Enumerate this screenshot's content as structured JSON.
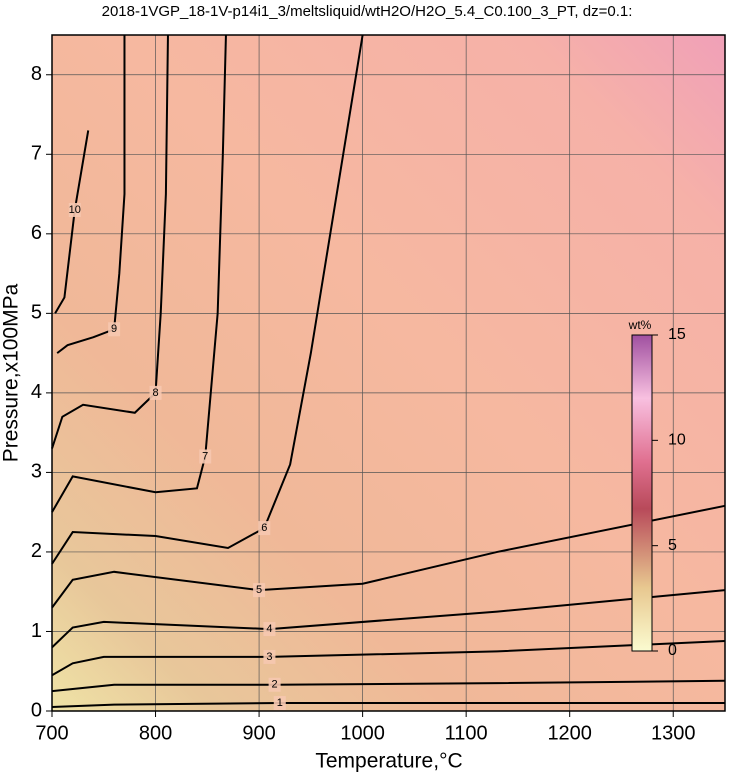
{
  "chart_data": {
    "type": "contour",
    "title": "2018-1VGP_18-1V-p14i1_3/meltsliquid/wtH2O/H2O_5.4_C0.100_3_PT, dz=0.1:",
    "x_label": "Temperature,°C",
    "y_label": "Pressure,x100MPa",
    "xlim": [
      700,
      1350
    ],
    "ylim": [
      0,
      8.5
    ],
    "xticks": [
      700,
      800,
      900,
      1000,
      1100,
      1200,
      1300
    ],
    "yticks": [
      0,
      1,
      2,
      3,
      4,
      5,
      6,
      7,
      8
    ],
    "grid": true,
    "color": "#000000",
    "colorbar": {
      "label": "wt%",
      "lim": [
        0,
        15
      ],
      "ticks": [
        0,
        5,
        10,
        15
      ]
    },
    "series": [
      {
        "level": 1,
        "x": [
          700,
          760,
          920,
          1130,
          1350
        ],
        "y": [
          0.05,
          0.08,
          0.1,
          0.1,
          0.1
        ]
      },
      {
        "level": 2,
        "x": [
          700,
          760,
          915,
          1130,
          1350
        ],
        "y": [
          0.25,
          0.33,
          0.33,
          0.35,
          0.38
        ]
      },
      {
        "level": 3,
        "x": [
          700,
          720,
          750,
          910,
          1130,
          1350
        ],
        "y": [
          0.45,
          0.6,
          0.68,
          0.68,
          0.75,
          0.88
        ]
      },
      {
        "level": 4,
        "x": [
          700,
          720,
          750,
          910,
          1130,
          1350
        ],
        "y": [
          0.8,
          1.05,
          1.12,
          1.03,
          1.25,
          1.52
        ]
      },
      {
        "level": 5,
        "x": [
          700,
          720,
          760,
          900,
          1000,
          1130,
          1350
        ],
        "y": [
          1.3,
          1.65,
          1.75,
          1.52,
          1.6,
          2.0,
          2.58
        ]
      },
      {
        "level": 6,
        "x": [
          700,
          720,
          800,
          870,
          905,
          930,
          950,
          975,
          1000
        ],
        "y": [
          1.85,
          2.25,
          2.2,
          2.05,
          2.3,
          3.1,
          4.5,
          6.5,
          8.5
        ]
      },
      {
        "level": 7,
        "x": [
          700,
          720,
          800,
          840,
          848,
          860,
          865,
          868
        ],
        "y": [
          2.5,
          2.95,
          2.75,
          2.8,
          3.2,
          5.0,
          7.0,
          8.5
        ]
      },
      {
        "level": 8,
        "x": [
          700,
          710,
          730,
          780,
          800,
          805,
          810,
          812
        ],
        "y": [
          3.3,
          3.7,
          3.85,
          3.75,
          4.0,
          5.0,
          6.5,
          8.5
        ]
      },
      {
        "level": 9,
        "x": [
          705,
          715,
          740,
          760,
          765,
          770,
          770
        ],
        "y": [
          4.5,
          4.6,
          4.7,
          4.8,
          5.5,
          6.5,
          8.5
        ]
      },
      {
        "level": 10,
        "x": [
          703,
          712,
          722,
          735
        ],
        "y": [
          5.0,
          5.2,
          6.3,
          7.3
        ]
      }
    ]
  }
}
